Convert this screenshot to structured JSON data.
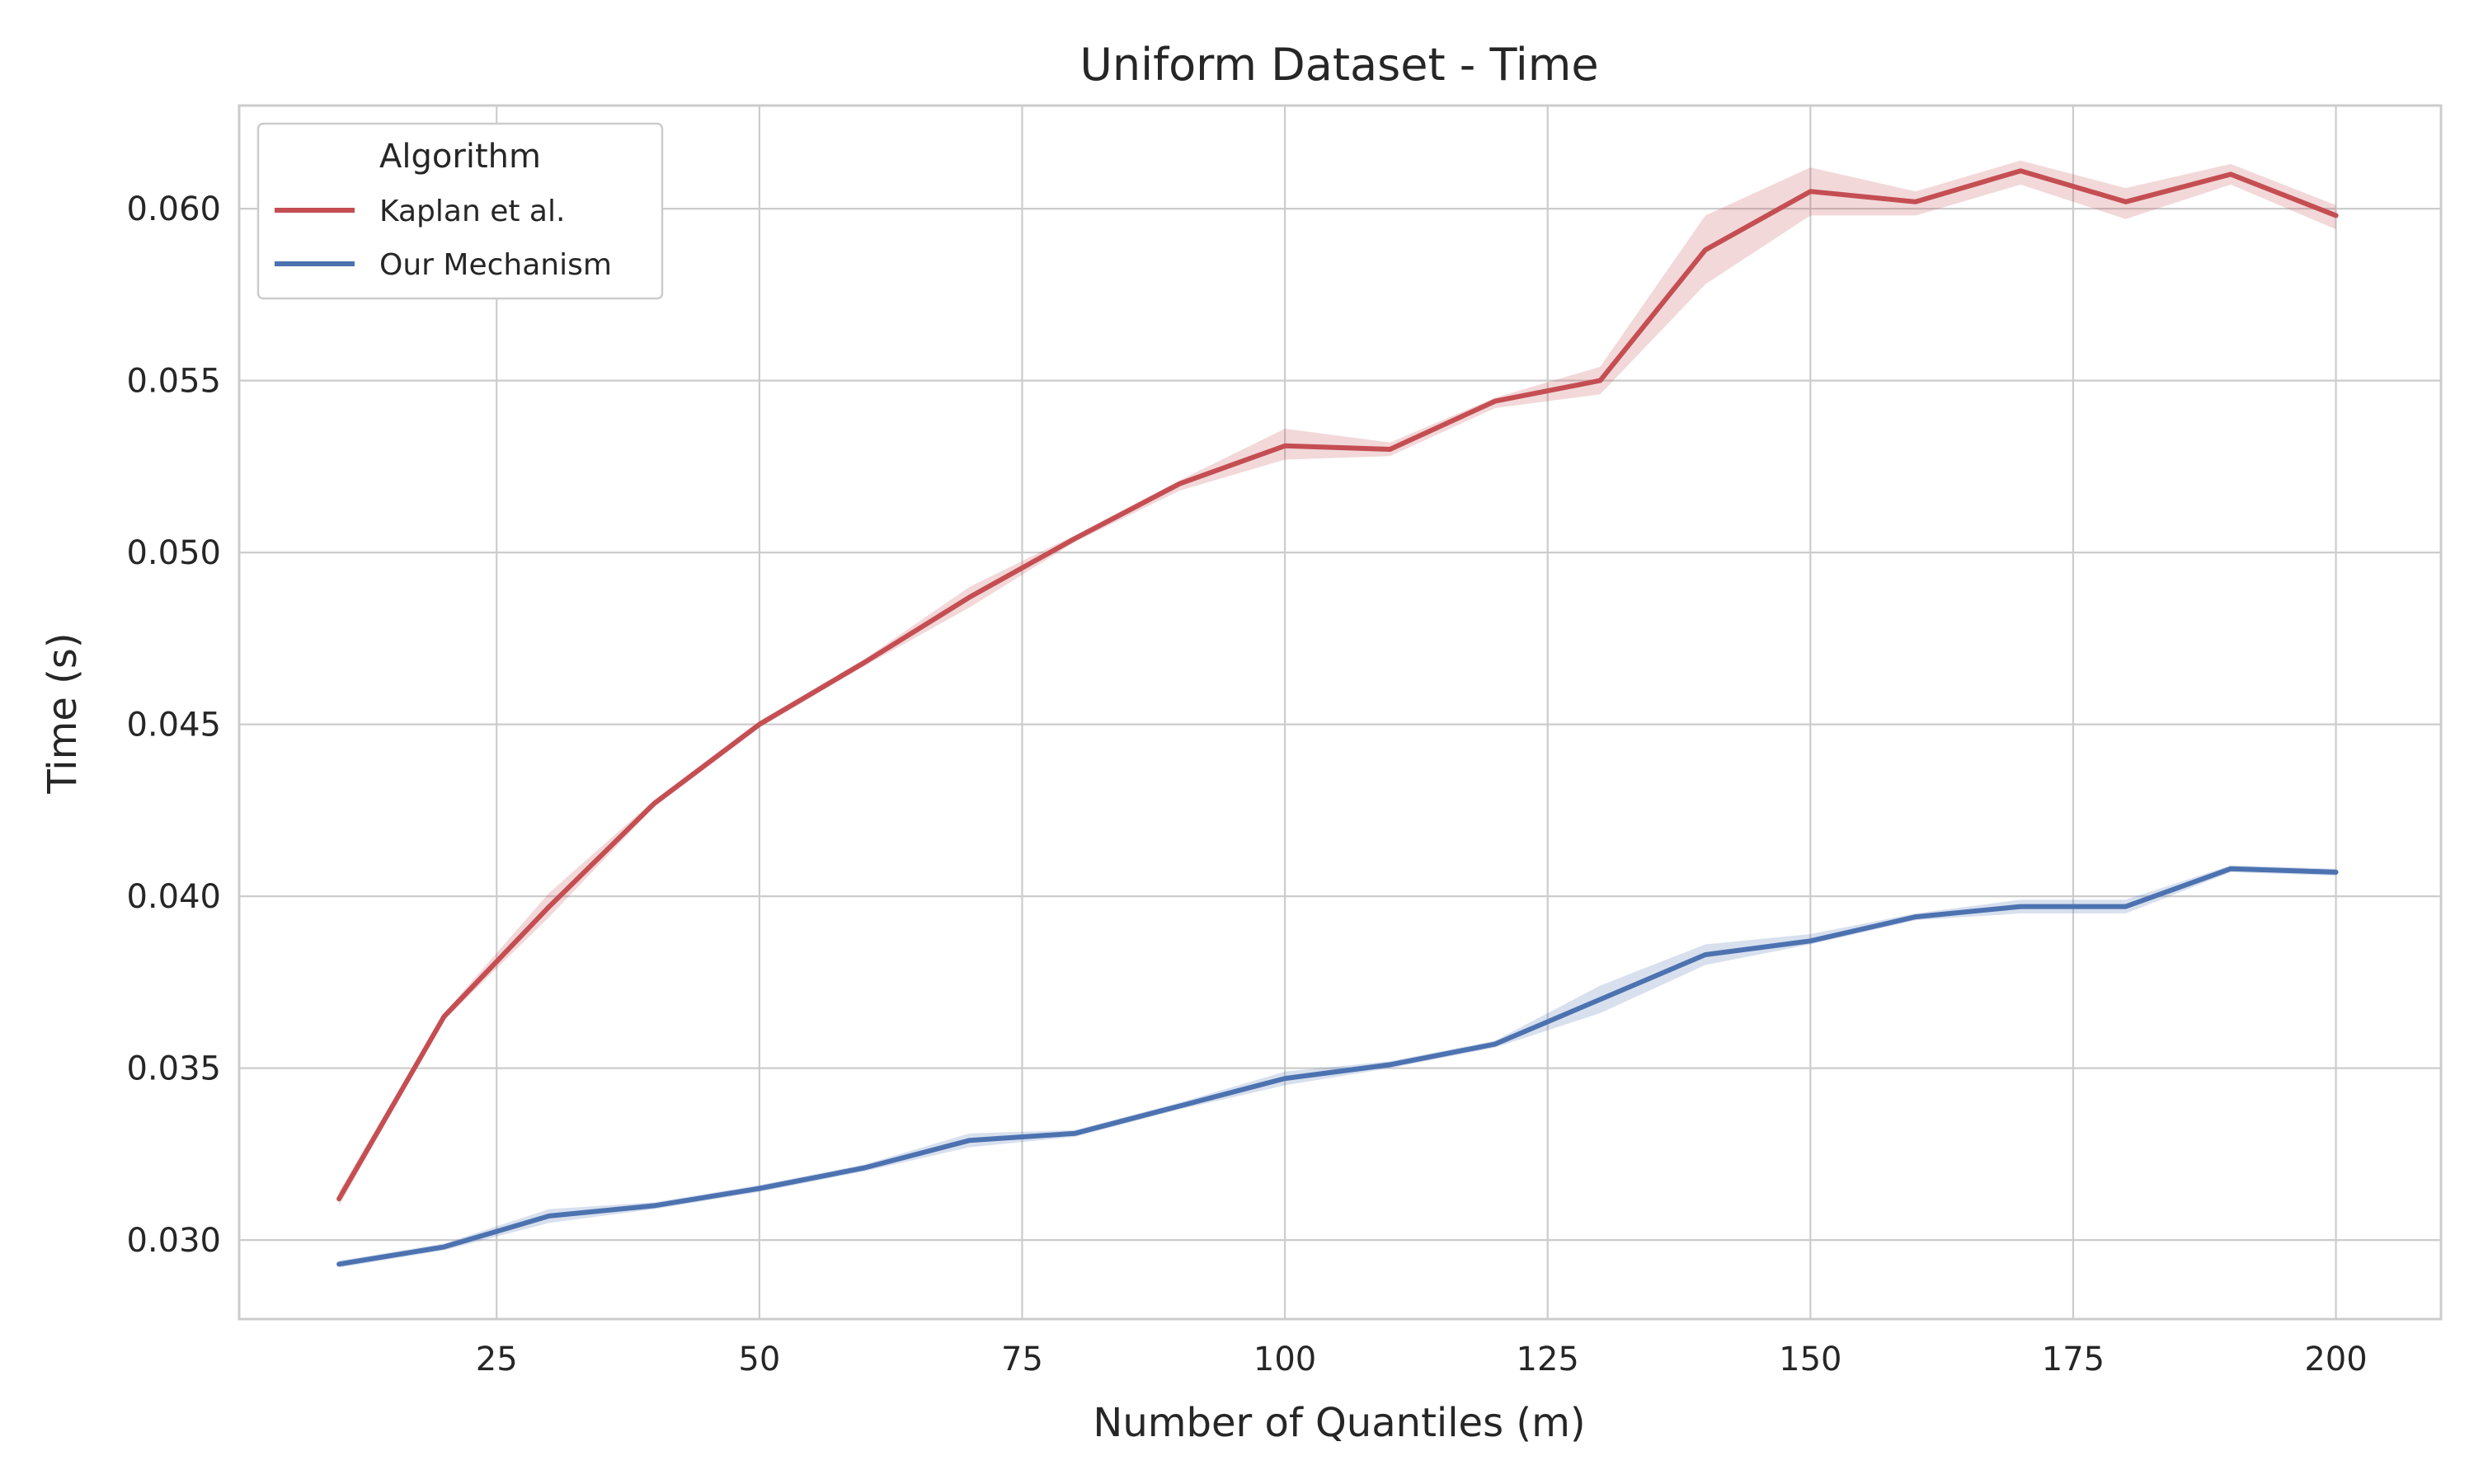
{
  "chart_data": {
    "type": "line",
    "title": "Uniform Dataset - Time",
    "xlabel": "Number of Quantiles (m)",
    "ylabel": "Time (s)",
    "xlim": [
      0.5,
      210
    ],
    "ylim": [
      0.0277,
      0.063
    ],
    "xticks": [
      25,
      50,
      75,
      100,
      125,
      150,
      175,
      200
    ],
    "xtick_labels": [
      "25",
      "50",
      "75",
      "100",
      "125",
      "150",
      "175",
      "200"
    ],
    "yticks": [
      0.03,
      0.035,
      0.04,
      0.045,
      0.05,
      0.055,
      0.06
    ],
    "ytick_labels": [
      "0.030",
      "0.035",
      "0.040",
      "0.045",
      "0.050",
      "0.055",
      "0.060"
    ],
    "grid": true,
    "legend": {
      "title": "Algorithm",
      "position": "top-left"
    },
    "x": [
      10,
      20,
      30,
      40,
      50,
      60,
      70,
      80,
      90,
      100,
      110,
      120,
      130,
      140,
      150,
      160,
      170,
      180,
      190,
      200
    ],
    "series": [
      {
        "name": "Kaplan et al.",
        "color": "#c44e52",
        "values": [
          0.0312,
          0.0365,
          0.0397,
          0.0427,
          0.045,
          0.0468,
          0.0487,
          0.0504,
          0.052,
          0.0531,
          0.053,
          0.0544,
          0.055,
          0.0588,
          0.0605,
          0.0602,
          0.0611,
          0.0602,
          0.061,
          0.0598
        ],
        "lower": [
          0.031,
          0.0364,
          0.0394,
          0.0426,
          0.0449,
          0.0467,
          0.0484,
          0.0503,
          0.0518,
          0.0527,
          0.0528,
          0.0542,
          0.0546,
          0.0578,
          0.0598,
          0.0598,
          0.0607,
          0.0597,
          0.0607,
          0.0594
        ],
        "upper": [
          0.0314,
          0.0366,
          0.0401,
          0.0428,
          0.0451,
          0.0469,
          0.049,
          0.0505,
          0.0521,
          0.0536,
          0.0532,
          0.0545,
          0.0554,
          0.0598,
          0.0612,
          0.0605,
          0.0614,
          0.0606,
          0.0613,
          0.0601
        ]
      },
      {
        "name": "Our Mechanism",
        "color": "#4c72b0",
        "values": [
          0.0293,
          0.0298,
          0.0307,
          0.031,
          0.0315,
          0.0321,
          0.0329,
          0.0331,
          0.0339,
          0.0347,
          0.0351,
          0.0357,
          0.037,
          0.0383,
          0.0387,
          0.0394,
          0.0397,
          0.0397,
          0.0408,
          0.0407
        ],
        "lower": [
          0.0292,
          0.0297,
          0.0305,
          0.0309,
          0.0314,
          0.032,
          0.0327,
          0.033,
          0.0338,
          0.0345,
          0.035,
          0.0356,
          0.0366,
          0.038,
          0.0386,
          0.0393,
          0.0395,
          0.0395,
          0.0407,
          0.0406
        ],
        "upper": [
          0.0294,
          0.0299,
          0.0309,
          0.0311,
          0.0316,
          0.0322,
          0.0331,
          0.0332,
          0.034,
          0.0349,
          0.0352,
          0.0358,
          0.0374,
          0.0386,
          0.0389,
          0.0395,
          0.0399,
          0.0399,
          0.0409,
          0.0408
        ]
      }
    ]
  }
}
